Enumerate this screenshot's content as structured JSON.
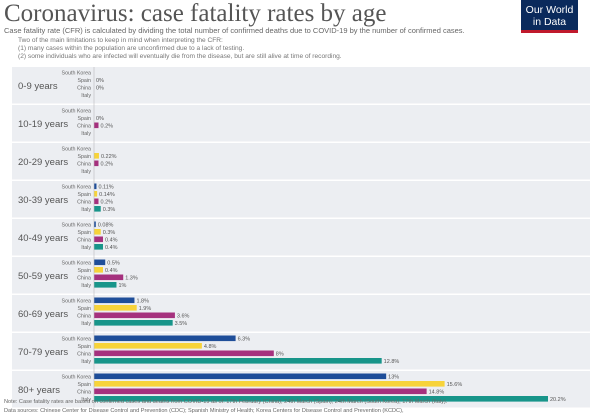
{
  "header": {
    "title": "Coronavirus: case fatality rates by age",
    "subtitle": "Case fatality rate (CFR) is calculated by dividing the total number of confirmed deaths due to COVID-19 by the number of confirmed cases.",
    "notes": [
      "Two of the main limitations to keep in mind when interpreting the CFR:",
      "(1) many cases within the population are unconfirmed due to a lack of testing.",
      "(2) some individuals who are infected will eventually die from the disease, but are still alive at time of recording."
    ],
    "logo": "Our World in Data"
  },
  "footer": {
    "note": "Note: Case fatality rates are based on confirmed cases and deaths from COVID-19 as of: 17th February (China); 24th March (Spain); 24th March (South Korea); 17th March (Italy).",
    "sources": "Data sources: Chinese Center for Disease Control and Prevention (CDC); Spanish Ministry of Health; Korea Centers for Disease Control and Prevention (KCDC),"
  },
  "colors": {
    "South Korea": "#1f4e99",
    "Spain": "#f7d33a",
    "China": "#a5317e",
    "Italy": "#18958a",
    "band": "#eceef2",
    "zero_line": "#bbbbbb"
  },
  "chart_data": {
    "type": "bar",
    "orientation": "horizontal",
    "categories": [
      "0-9 years",
      "10-19 years",
      "20-29 years",
      "30-39 years",
      "40-49 years",
      "50-59 years",
      "60-69 years",
      "70-79 years",
      "80+ years"
    ],
    "series": [
      {
        "name": "South Korea",
        "values": [
          null,
          null,
          null,
          0.11,
          0.08,
          0.5,
          1.8,
          6.3,
          13
        ],
        "labels": [
          "",
          "",
          "",
          "0.11%",
          "0.08%",
          "0.5%",
          "1.8%",
          "6.3%",
          "13%"
        ]
      },
      {
        "name": "Spain",
        "values": [
          0,
          0,
          0.22,
          0.14,
          0.3,
          0.4,
          1.9,
          4.8,
          15.6
        ],
        "labels": [
          "0%",
          "0%",
          "0.22%",
          "0.14%",
          "0.3%",
          "0.4%",
          "1.9%",
          "4.8%",
          "15.6%"
        ]
      },
      {
        "name": "China",
        "values": [
          0,
          0.2,
          0.2,
          0.2,
          0.4,
          1.3,
          3.6,
          8,
          14.8
        ],
        "labels": [
          "0%",
          "0.2%",
          "0.2%",
          "0.2%",
          "0.4%",
          "1.3%",
          "3.6%",
          "8%",
          "14.8%"
        ]
      },
      {
        "name": "Italy",
        "values": [
          null,
          null,
          null,
          0.3,
          0.4,
          1,
          3.5,
          12.8,
          20.2
        ],
        "labels": [
          "",
          "",
          "",
          "0.3%",
          "0.4%",
          "1%",
          "3.5%",
          "12.8%",
          "20.2%"
        ]
      }
    ],
    "xlim": [
      0,
      20.2
    ]
  }
}
